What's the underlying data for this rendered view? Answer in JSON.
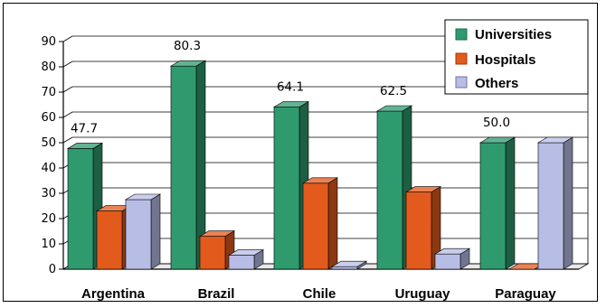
{
  "chart_data": {
    "type": "bar",
    "categories": [
      "Argentina",
      "Brazil",
      "Chile",
      "Uruguay",
      "Paraguay"
    ],
    "series": [
      {
        "name": "Universities",
        "values": [
          47.7,
          80.3,
          64.1,
          62.5,
          50.0
        ],
        "color": "#2f9a6e"
      },
      {
        "name": "Hospitals",
        "values": [
          23.0,
          13.0,
          34.0,
          30.5,
          0
        ],
        "color": "#e25a1c"
      },
      {
        "name": "Others",
        "values": [
          27.5,
          5.5,
          1.0,
          6.0,
          50.0
        ],
        "color": "#b8bde6"
      }
    ],
    "data_labels": [
      {
        "series": 0,
        "index": 0,
        "text": "47.7"
      },
      {
        "series": 0,
        "index": 1,
        "text": "80.3"
      },
      {
        "series": 0,
        "index": 2,
        "text": "64.1"
      },
      {
        "series": 0,
        "index": 3,
        "text": "62.5"
      },
      {
        "series": 0,
        "index": 4,
        "text": "50.0"
      }
    ],
    "y_ticks": [
      0,
      10,
      20,
      30,
      40,
      50,
      60,
      70,
      80,
      90
    ],
    "ylim": [
      0,
      90
    ],
    "title": "",
    "xlabel": "",
    "ylabel": "",
    "grid": true,
    "legend_position": "top-right",
    "style": "3d"
  }
}
